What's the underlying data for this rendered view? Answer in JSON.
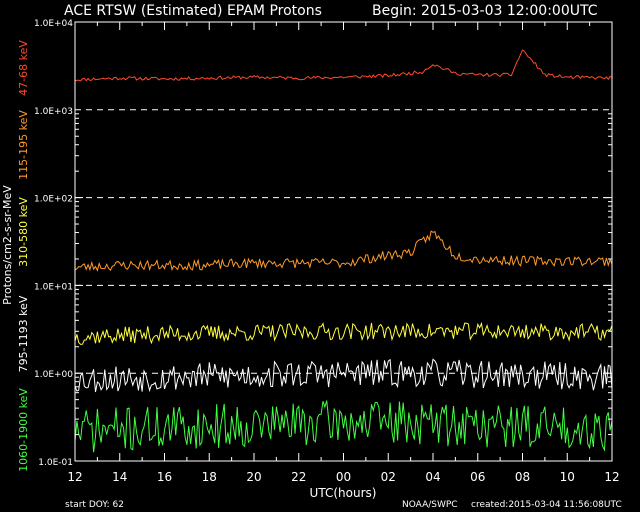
{
  "header": {
    "title": "ACE RTSW (Estimated) EPAM Protons",
    "begin": "Begin: 2015-03-03 12:00:00UTC"
  },
  "footer": {
    "start_doy": "start DOY:   62",
    "credit": "NOAA/SWPC",
    "created": "created:2015-03-04 11:56:08UTC"
  },
  "chart_data": {
    "type": "line",
    "title": "ACE RTSW (Estimated) EPAM Protons",
    "xlabel": "UTC(hours)",
    "ylabel": "Protons/cm2-s-sr-MeV",
    "yscale": "log",
    "ylim": [
      0.1,
      10000
    ],
    "xlim_hours": [
      0,
      24
    ],
    "x_tick_labels": [
      "12",
      "14",
      "16",
      "18",
      "20",
      "22",
      "00",
      "02",
      "04",
      "06",
      "08",
      "10",
      "12"
    ],
    "y_tick_labels": [
      "1.0E-01",
      "1.0E+00",
      "1.0E+01",
      "1.0E+02",
      "1.0E+03",
      "1.0E+04"
    ],
    "y_tick_values": [
      0.1,
      1,
      10,
      100,
      1000,
      10000
    ],
    "dashed_gridlines_at": [
      1,
      10,
      100,
      1000
    ],
    "legend_position": "left (rotated channel labels)",
    "series": [
      {
        "name": "47-68 keV",
        "color": "#ff4a2a",
        "x_hours": [
          0,
          2,
          4,
          6,
          8,
          10,
          12,
          14,
          15.5,
          16,
          17,
          18,
          19.5,
          20,
          21,
          22,
          24
        ],
        "values": [
          2200,
          2300,
          2250,
          2300,
          2350,
          2300,
          2350,
          2450,
          2700,
          3300,
          2600,
          2500,
          2500,
          4800,
          2500,
          2350,
          2300
        ]
      },
      {
        "name": "115-195 keV",
        "color": "#ff9a2a",
        "x_hours": [
          0,
          2,
          4,
          6,
          8,
          10,
          12,
          13,
          14,
          15,
          16,
          17,
          18,
          20,
          22,
          24
        ],
        "values": [
          16,
          17,
          17,
          17,
          18,
          18,
          18,
          20,
          22,
          24,
          40,
          22,
          20,
          19,
          19,
          19
        ]
      },
      {
        "name": "310-580 keV",
        "color": "#ffff40",
        "x_hours": [
          0,
          4,
          8,
          12,
          16,
          20,
          24
        ],
        "values": [
          2.6,
          2.8,
          2.9,
          3.0,
          3.0,
          3.0,
          2.9
        ]
      },
      {
        "name": "795-1193 keV",
        "color": "#ffffff",
        "x_hours": [
          0,
          4,
          8,
          12,
          16,
          20,
          24
        ],
        "values": [
          0.85,
          0.9,
          0.95,
          1.0,
          1.0,
          0.95,
          0.9
        ]
      },
      {
        "name": "1060-1900 keV",
        "color": "#40ff40",
        "x_hours": [
          0,
          4,
          8,
          12,
          16,
          20,
          24
        ],
        "values": [
          0.22,
          0.24,
          0.26,
          0.28,
          0.27,
          0.25,
          0.24
        ]
      }
    ]
  }
}
